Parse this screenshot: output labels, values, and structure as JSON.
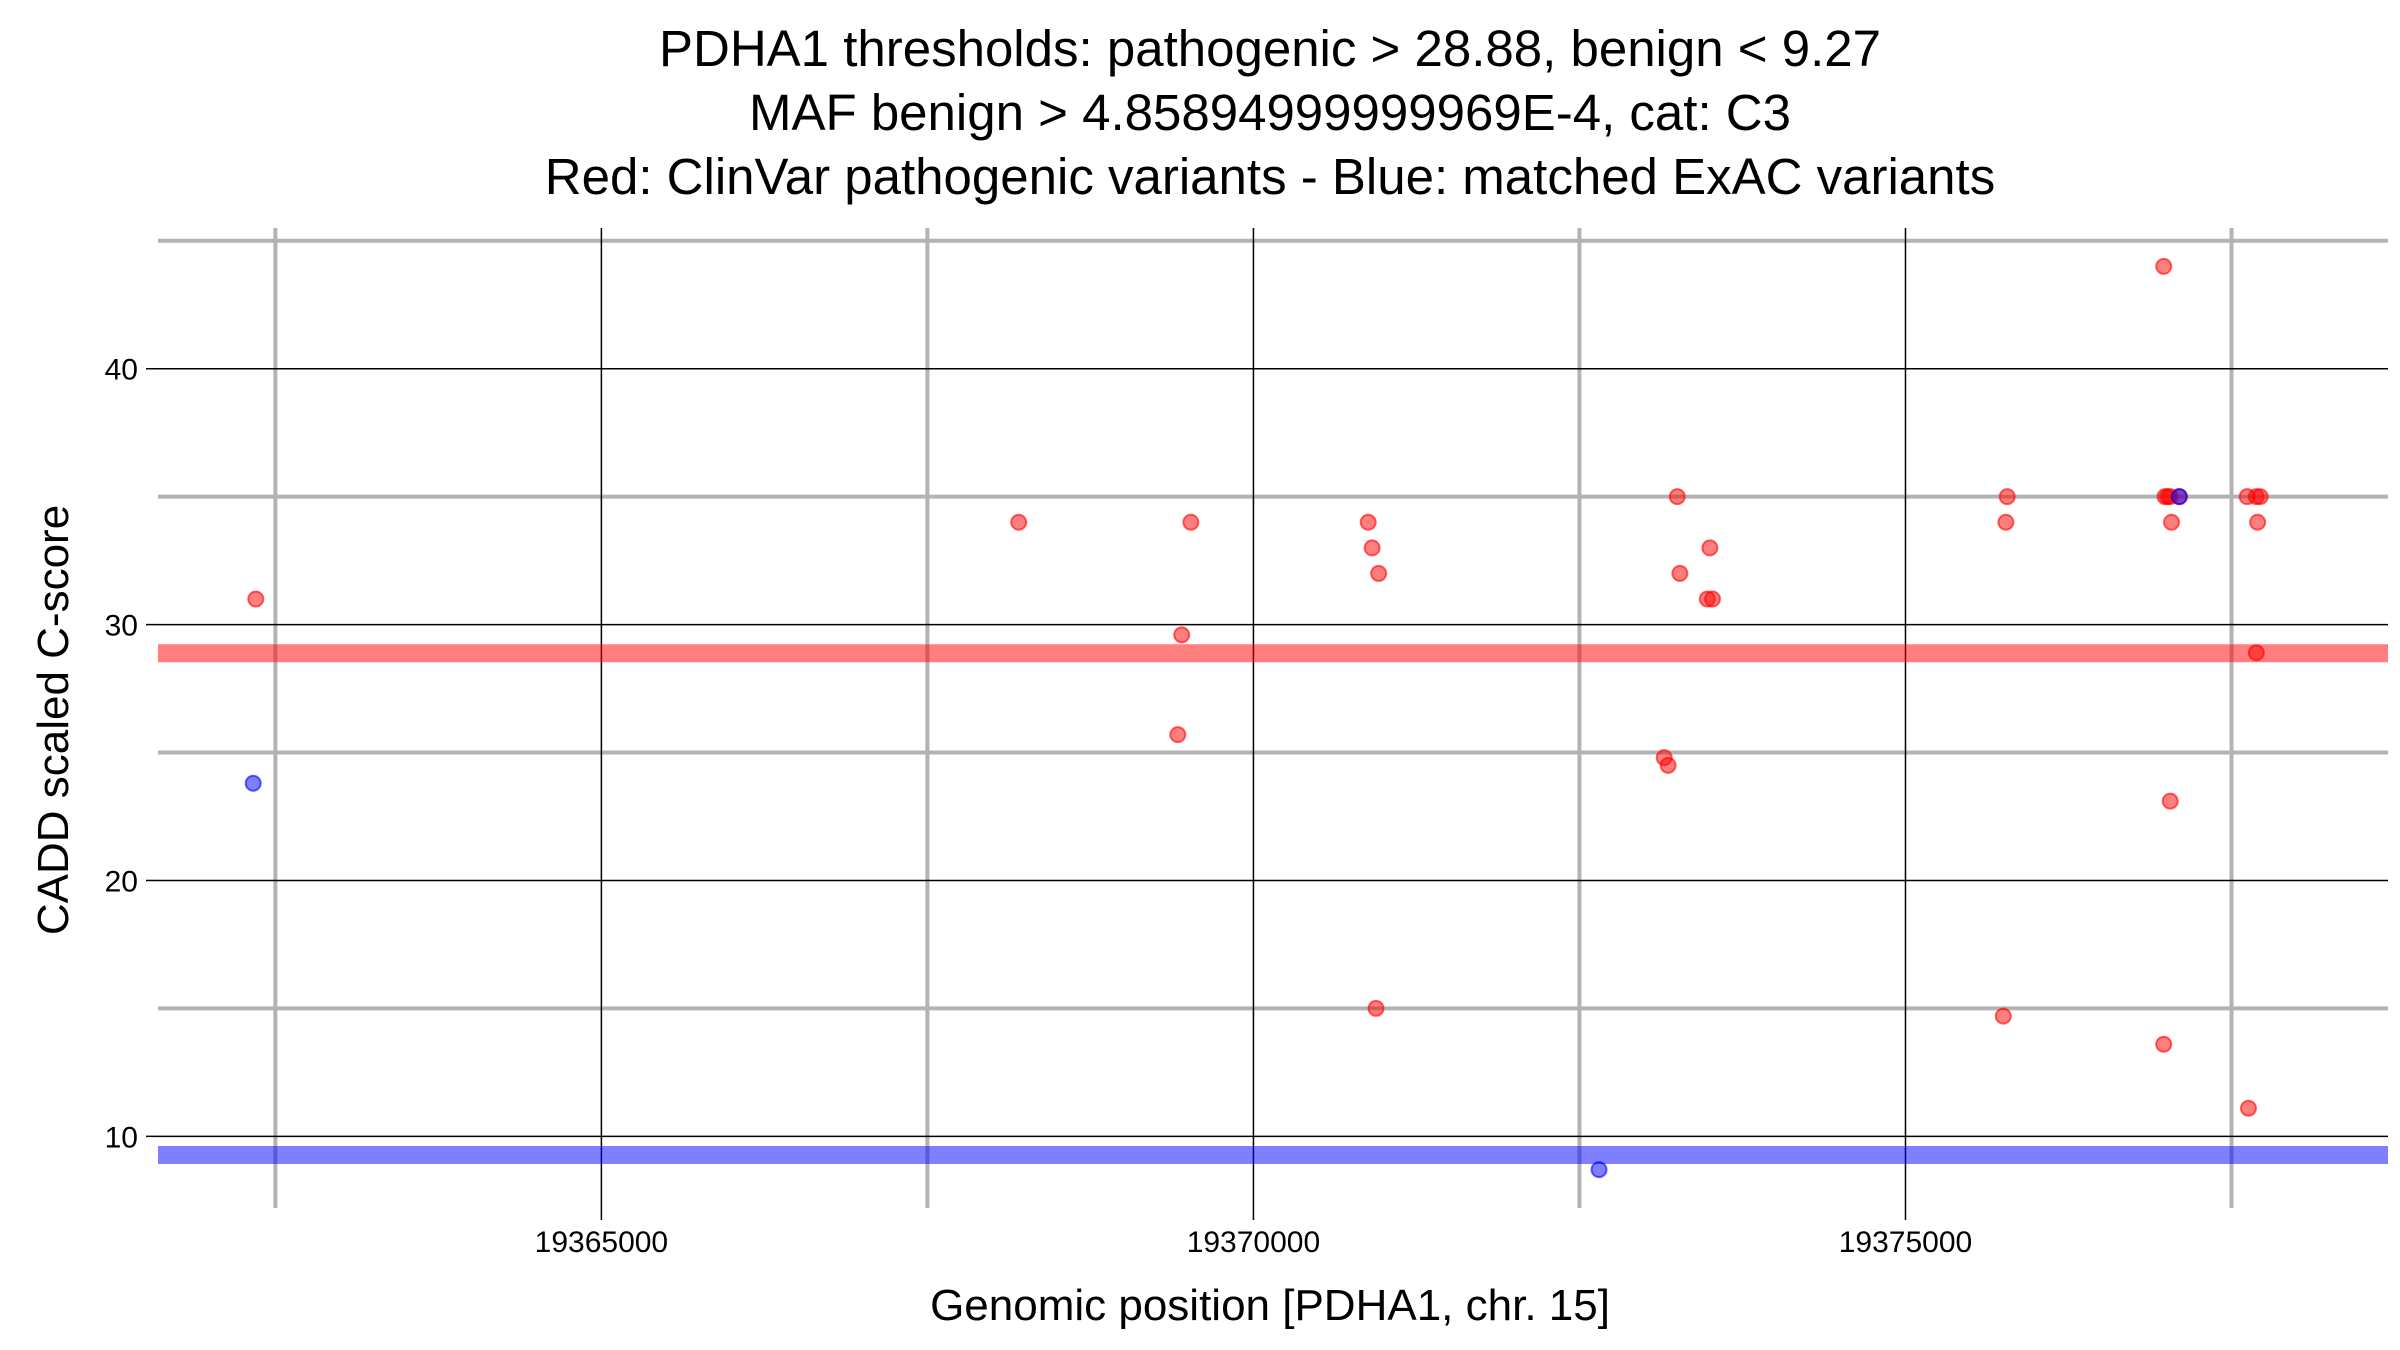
{
  "chart_data": {
    "type": "scatter",
    "title_lines": [
      "PDHA1 thresholds: pathogenic > 28.88, benign < 9.27",
      "MAF benign > 4.85894999999969E-4, cat: C3",
      "Red: ClinVar pathogenic variants - Blue: matched ExAC variants"
    ],
    "xlabel": "Genomic position [PDHA1, chr. 15]",
    "ylabel": "CADD scaled C-score",
    "xlim": [
      19361600,
      19378700
    ],
    "ylim": [
      7.2,
      45.5
    ],
    "x_ticks": [
      19365000,
      19370000,
      19375000
    ],
    "x_minor": [
      19362500,
      19367500,
      19372500,
      19377500
    ],
    "y_ticks": [
      10,
      20,
      30,
      40
    ],
    "y_minor": [
      15,
      25,
      35,
      45
    ],
    "thresholds": [
      {
        "value": 28.88,
        "color": "#ff0000"
      },
      {
        "value": 9.27,
        "color": "#0000ff"
      }
    ],
    "series": [
      {
        "color": "#ff0000",
        "points": [
          [
            19362350,
            31.0
          ],
          [
            19368200,
            34.0
          ],
          [
            19369450,
            29.6
          ],
          [
            19369420,
            25.7
          ],
          [
            19369520,
            34.0
          ],
          [
            19370880,
            34.0
          ],
          [
            19370910,
            33.0
          ],
          [
            19370960,
            32.0
          ],
          [
            19370940,
            15.0
          ],
          [
            19373250,
            35.0
          ],
          [
            19373150,
            24.8
          ],
          [
            19373180,
            24.5
          ],
          [
            19373270,
            32.0
          ],
          [
            19373500,
            33.0
          ],
          [
            19373480,
            31.0
          ],
          [
            19373520,
            31.0
          ],
          [
            19375780,
            35.0
          ],
          [
            19375770,
            34.0
          ],
          [
            19375750,
            14.7
          ],
          [
            19376980,
            44.0
          ],
          [
            19376990,
            35.0
          ],
          [
            19377010,
            35.0
          ],
          [
            19377030,
            35.0
          ],
          [
            19377040,
            34.0
          ],
          [
            19377030,
            23.1
          ],
          [
            19376980,
            13.6
          ],
          [
            19377100,
            35.0
          ],
          [
            19377620,
            35.0
          ],
          [
            19377690,
            35.0
          ],
          [
            19377700,
            34.0
          ],
          [
            19377690,
            28.9
          ],
          [
            19377720,
            35.0
          ],
          [
            19377630,
            11.1
          ]
        ]
      },
      {
        "color": "#0000ff",
        "points": [
          [
            19362330,
            23.8
          ],
          [
            19372650,
            8.7
          ],
          [
            19377100,
            35.0
          ]
        ]
      }
    ],
    "grid": true
  }
}
